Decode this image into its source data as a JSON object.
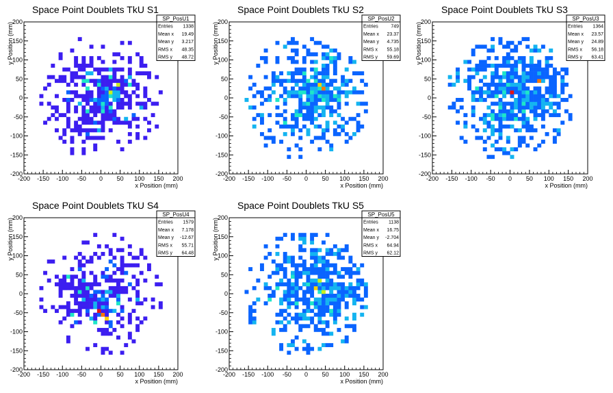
{
  "colors": {
    "palette": [
      "#3c1ef0",
      "#0a64ff",
      "#14b4f0",
      "#1ee6c8",
      "#5af05a",
      "#c8f01e",
      "#ffd200",
      "#ff7800",
      "#e61414"
    ]
  },
  "chart_data": [
    {
      "type": "heatmap",
      "title": "Space Point Doublets TkU S1",
      "xlabel": "x Position (mm)",
      "ylabel": "y Position (mm)",
      "xlim": [
        -200,
        200
      ],
      "ylim": [
        -200,
        200
      ],
      "x_ticks": [
        "-200",
        "-150",
        "-100",
        "-50",
        "0",
        "50",
        "100",
        "150",
        "200"
      ],
      "y_ticks": [
        "-200",
        "-150",
        "-100",
        "-50",
        "0",
        "50",
        "100",
        "150",
        "200"
      ],
      "stats": {
        "name": "SP_PosU1",
        "rows": [
          [
            "Entries",
            "1338"
          ],
          [
            "Mean x",
            "19.49"
          ],
          [
            "Mean y",
            "3.217"
          ],
          [
            "RMS x",
            "48.35"
          ],
          [
            "RMS y",
            "48.72"
          ]
        ]
      },
      "hotspots": [
        {
          "x": 20,
          "y": 10,
          "level": 5
        },
        {
          "x": 40,
          "y": 30,
          "level": 5
        }
      ],
      "dominant_level": 0,
      "style": "diagonal"
    },
    {
      "type": "heatmap",
      "title": "Space Point Doublets TkU S2",
      "xlabel": "x Position (mm)",
      "ylabel": "y Position (mm)",
      "xlim": [
        -200,
        200
      ],
      "ylim": [
        -200,
        200
      ],
      "x_ticks": [
        "-200",
        "-150",
        "-100",
        "-50",
        "0",
        "50",
        "100",
        "150",
        "200"
      ],
      "y_ticks": [
        "-200",
        "-150",
        "-100",
        "-50",
        "0",
        "50",
        "100",
        "150",
        "200"
      ],
      "stats": {
        "name": "SP_PosU2",
        "rows": [
          [
            "Entries",
            "749"
          ],
          [
            "Mean x",
            "23.37"
          ],
          [
            "Mean y",
            "4.735"
          ],
          [
            "RMS x",
            "55.18"
          ],
          [
            "RMS y",
            "59.69"
          ]
        ]
      },
      "hotspots": [
        {
          "x": 30,
          "y": 30,
          "level": 6
        },
        {
          "x": 45,
          "y": 20,
          "level": 7
        },
        {
          "x": 70,
          "y": 50,
          "level": 4
        }
      ],
      "dominant_level": 1,
      "style": "blob"
    },
    {
      "type": "heatmap",
      "title": "Space Point Doublets TkU S3",
      "xlabel": "x Position (mm)",
      "ylabel": "y Position (mm)",
      "xlim": [
        -200,
        200
      ],
      "ylim": [
        -200,
        200
      ],
      "x_ticks": [
        "-200",
        "-150",
        "-100",
        "-50",
        "0",
        "50",
        "100",
        "150",
        "200"
      ],
      "y_ticks": [
        "-200",
        "-150",
        "-100",
        "-50",
        "0",
        "50",
        "100",
        "150",
        "200"
      ],
      "stats": {
        "name": "SP_PosU3",
        "rows": [
          [
            "Entries",
            "1364"
          ],
          [
            "Mean x",
            "23.57"
          ],
          [
            "Mean y",
            "24.89"
          ],
          [
            "RMS x",
            "56.18"
          ],
          [
            "RMS y",
            "63.41"
          ]
        ]
      },
      "hotspots": [
        {
          "x": 0,
          "y": 15,
          "level": 8
        },
        {
          "x": 75,
          "y": 40,
          "level": 7
        },
        {
          "x": 75,
          "y": 30,
          "level": 6
        },
        {
          "x": 50,
          "y": 30,
          "level": 5
        }
      ],
      "dominant_level": 1,
      "style": "blob"
    },
    {
      "type": "heatmap",
      "title": "Space Point Doublets TkU S4",
      "xlabel": "x Position (mm)",
      "ylabel": "y Position (mm)",
      "xlim": [
        -200,
        200
      ],
      "ylim": [
        -200,
        200
      ],
      "x_ticks": [
        "-200",
        "-150",
        "-100",
        "-50",
        "0",
        "50",
        "100",
        "150",
        "200"
      ],
      "y_ticks": [
        "-200",
        "-150",
        "-100",
        "-50",
        "0",
        "50",
        "100",
        "150",
        "200"
      ],
      "stats": {
        "name": "SP_PosU4",
        "rows": [
          [
            "Entries",
            "1579"
          ],
          [
            "Mean x",
            "7.178"
          ],
          [
            "Mean y",
            "-12.67"
          ],
          [
            "RMS x",
            "55.71"
          ],
          [
            "RMS y",
            "64.48"
          ]
        ]
      },
      "hotspots": [
        {
          "x": -10,
          "y": -45,
          "level": 8
        },
        {
          "x": 0,
          "y": -55,
          "level": 7
        },
        {
          "x": 15,
          "y": -65,
          "level": 6
        }
      ],
      "dominant_level": 0,
      "style": "anti"
    },
    {
      "type": "heatmap",
      "title": "Space Point Doublets TkU S5",
      "xlabel": "x Position (mm)",
      "ylabel": "y Position (mm)",
      "xlim": [
        -200,
        200
      ],
      "ylim": [
        -200,
        200
      ],
      "x_ticks": [
        "-200",
        "-150",
        "-100",
        "-50",
        "0",
        "50",
        "100",
        "150",
        "200"
      ],
      "y_ticks": [
        "-200",
        "-150",
        "-100",
        "-50",
        "0",
        "50",
        "100",
        "150",
        "200"
      ],
      "stats": {
        "name": "SP_PosU5",
        "rows": [
          [
            "Entries",
            "1138"
          ],
          [
            "Mean x",
            "16.75"
          ],
          [
            "Mean y",
            "-2.704"
          ],
          [
            "RMS x",
            "64.94"
          ],
          [
            "RMS y",
            "62.12"
          ]
        ]
      },
      "hotspots": [
        {
          "x": 20,
          "y": 10,
          "level": 6
        },
        {
          "x": 45,
          "y": 0,
          "level": 5
        },
        {
          "x": 30,
          "y": 30,
          "level": 5
        }
      ],
      "dominant_level": 1,
      "style": "blob"
    }
  ]
}
